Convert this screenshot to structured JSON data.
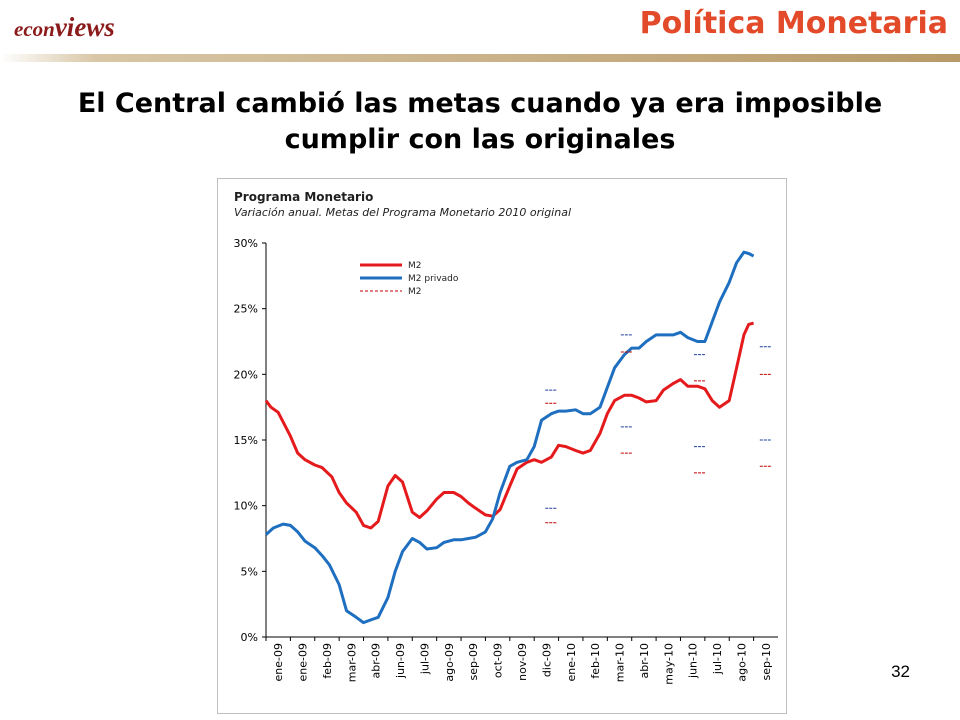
{
  "brand": {
    "part1": "econ",
    "part2": "views"
  },
  "section_title": "Política Monetaria",
  "headline": {
    "line1": "El Central cambió las metas cuando ya era imposible",
    "line2": "cumplir con las originales"
  },
  "page_number": "32",
  "colors": {
    "brand": "#8b1a1a",
    "section_title": "#e24a2a",
    "m2": "#e41a1c",
    "m2_privado": "#1f6fc0",
    "meta_m2": "#c00000",
    "meta_m2_privado": "#1f3f9f"
  },
  "chart_data": {
    "type": "line",
    "title": "Programa Monetario",
    "subtitle": "Variación anual. Metas del Programa Monetario 2010 original",
    "categories": [
      "ene-09",
      "ene-09",
      "feb-09",
      "mar-09",
      "abr-09",
      "jun-09",
      "jul-09",
      "ago-09",
      "sep-09",
      "oct-09",
      "nov-09",
      "dic-09",
      "ene-10",
      "feb-10",
      "mar-10",
      "abr-10",
      "may-10",
      "jun-10",
      "jul-10",
      "ago-10",
      "sep-10"
    ],
    "y_ticks": [
      "0%",
      "5%",
      "10%",
      "15%",
      "20%",
      "25%",
      "30%"
    ],
    "ylim": [
      0,
      30
    ],
    "x_range": [
      0,
      21
    ],
    "legend": [
      "M2",
      "M2 privado",
      "M2"
    ],
    "legend_position": "top-left",
    "grid": false,
    "series": [
      {
        "name": "M2",
        "style": "solid",
        "x": [
          0,
          0.2,
          0.5,
          1,
          1.3,
          1.6,
          2,
          2.3,
          2.7,
          3,
          3.3,
          3.7,
          4,
          4.3,
          4.6,
          5,
          5.3,
          5.6,
          6,
          6.3,
          6.6,
          7,
          7.3,
          7.7,
          8,
          8.3,
          8.6,
          9,
          9.3,
          9.6,
          10,
          10.3,
          10.7,
          11,
          11.3,
          11.7,
          12,
          12.3,
          12.7,
          13,
          13.3,
          13.7,
          14,
          14.3,
          14.7,
          15,
          15.3,
          15.6,
          16,
          16.3,
          16.7,
          17,
          17.3,
          17.7,
          18,
          18.3,
          18.6,
          19,
          19.3,
          19.6,
          19.8,
          20
        ],
        "y": [
          18,
          17.5,
          17.1,
          15.3,
          14,
          13.5,
          13.1,
          12.9,
          12.2,
          11,
          10.2,
          9.5,
          8.5,
          8.3,
          8.8,
          11.5,
          12.3,
          11.8,
          9.5,
          9.1,
          9.6,
          10.5,
          11,
          11,
          10.7,
          10.2,
          9.8,
          9.3,
          9.2,
          9.7,
          11.5,
          12.8,
          13.3,
          13.5,
          13.3,
          13.7,
          14.6,
          14.5,
          14.2,
          14,
          14.2,
          15.5,
          17,
          18,
          18.4,
          18.4,
          18.2,
          17.9,
          18,
          18.8,
          19.3,
          19.6,
          19.1,
          19.1,
          18.9,
          18,
          17.5,
          18,
          20.5,
          23,
          23.8,
          23.9
        ]
      },
      {
        "name": "M2 privado",
        "style": "solid",
        "x": [
          0,
          0.3,
          0.7,
          1,
          1.3,
          1.6,
          2,
          2.3,
          2.6,
          3,
          3.3,
          3.7,
          4,
          4.3,
          4.6,
          5,
          5.3,
          5.6,
          6,
          6.3,
          6.6,
          7,
          7.3,
          7.7,
          8,
          8.3,
          8.6,
          9,
          9.3,
          9.6,
          10,
          10.3,
          10.7,
          11,
          11.3,
          11.7,
          12,
          12.3,
          12.7,
          13,
          13.3,
          13.7,
          14,
          14.3,
          14.7,
          15,
          15.3,
          15.6,
          16,
          16.3,
          16.7,
          17,
          17.3,
          17.7,
          18,
          18.3,
          18.6,
          19,
          19.3,
          19.6,
          19.8,
          20
        ],
        "y": [
          7.8,
          8.3,
          8.6,
          8.5,
          8.0,
          7.3,
          6.8,
          6.2,
          5.5,
          4.0,
          2.0,
          1.5,
          1.1,
          1.3,
          1.5,
          3.0,
          5.0,
          6.5,
          7.5,
          7.2,
          6.7,
          6.8,
          7.2,
          7.4,
          7.4,
          7.5,
          7.6,
          8.0,
          9.0,
          11.0,
          13.0,
          13.3,
          13.5,
          14.5,
          16.5,
          17.0,
          17.2,
          17.2,
          17.3,
          17.0,
          17.0,
          17.5,
          19.0,
          20.5,
          21.5,
          22.0,
          22.0,
          22.5,
          23.0,
          23.0,
          23.0,
          23.2,
          22.8,
          22.5,
          22.5,
          24.0,
          25.5,
          27.0,
          28.5,
          29.3,
          29.2,
          29.0
        ]
      },
      {
        "name": "M2",
        "style": "dashed",
        "segments": [
          {
            "x": [
              11.7,
              11.7
            ],
            "y": [
              17.8,
              17.8
            ]
          },
          {
            "x": [
              11.7,
              11.7
            ],
            "y": [
              8.7,
              8.7
            ]
          },
          {
            "x": [
              14.8,
              14.8
            ],
            "y": [
              21.7,
              21.7
            ]
          },
          {
            "x": [
              14.8,
              14.8
            ],
            "y": [
              14.0,
              14.0
            ]
          },
          {
            "x": [
              17.8,
              17.8
            ],
            "y": [
              19.5,
              19.5
            ]
          },
          {
            "x": [
              17.8,
              17.8
            ],
            "y": [
              12.5,
              12.5
            ]
          },
          {
            "x": [
              20.5,
              20.5
            ],
            "y": [
              20.0,
              20.0
            ]
          },
          {
            "x": [
              20.5,
              20.5
            ],
            "y": [
              13.0,
              13.0
            ]
          }
        ]
      }
    ],
    "targets": [
      {
        "x": 11.7,
        "m2_privado": [
          18.8,
          9.8
        ],
        "m2": [
          17.8,
          8.7
        ]
      },
      {
        "x": 14.8,
        "m2_privado": [
          23.0,
          16.0
        ],
        "m2": [
          21.7,
          14.0
        ]
      },
      {
        "x": 17.8,
        "m2_privado": [
          21.5,
          14.5
        ],
        "m2": [
          19.5,
          12.5
        ]
      },
      {
        "x": 20.5,
        "m2_privado": [
          22.1,
          15.0
        ],
        "m2": [
          20.0,
          13.0
        ]
      }
    ]
  }
}
